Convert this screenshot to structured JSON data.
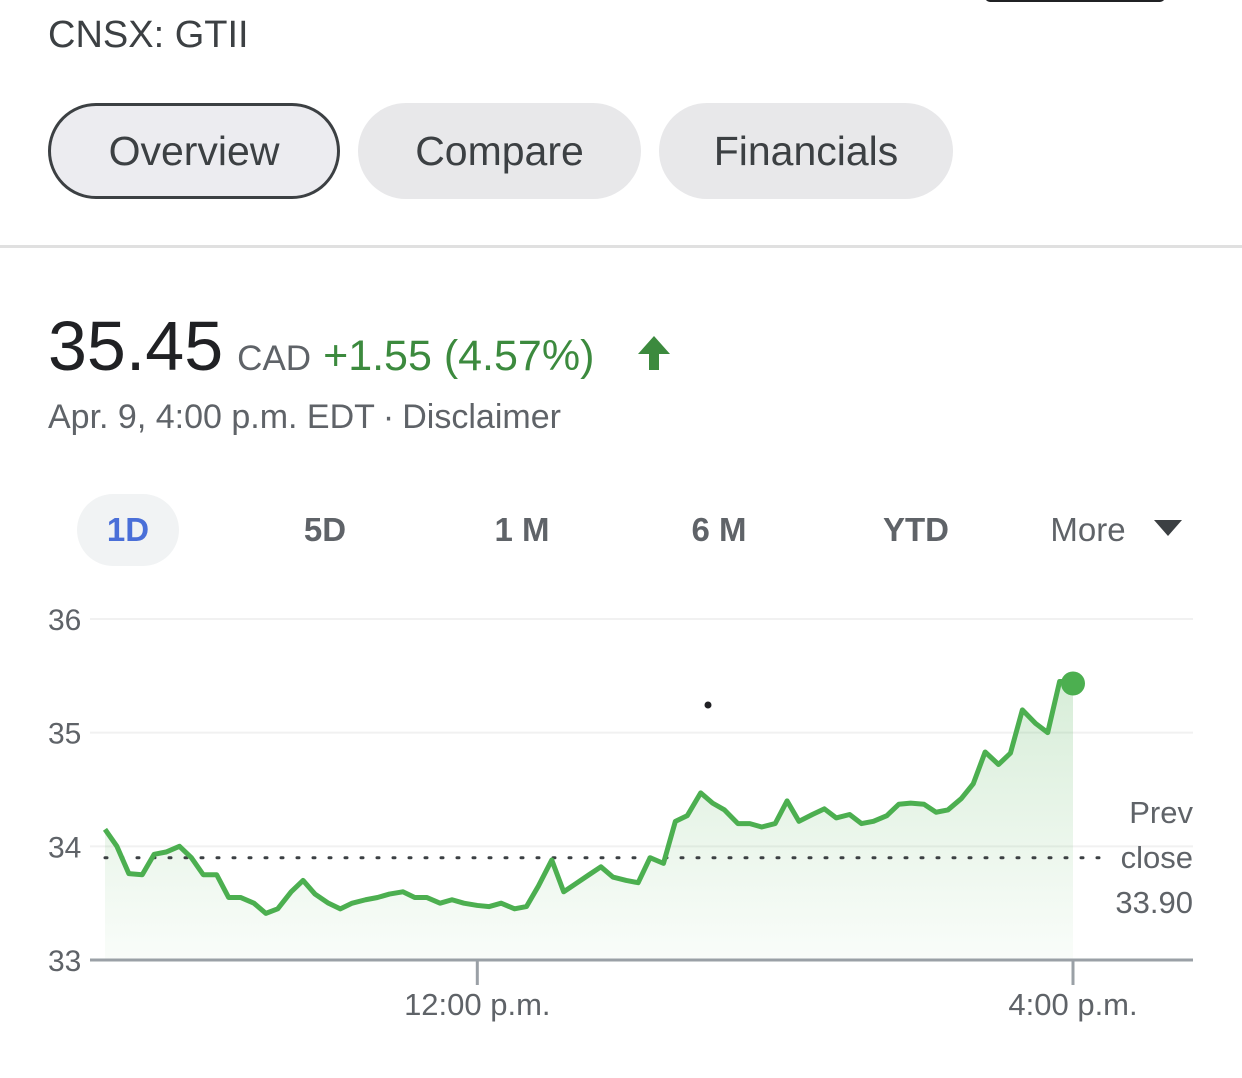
{
  "header": {
    "ticker": "CNSX: GTII"
  },
  "tabs": [
    {
      "label": "Overview",
      "active": true
    },
    {
      "label": "Compare",
      "active": false
    },
    {
      "label": "Financials",
      "active": false
    }
  ],
  "quote": {
    "price": "35.45",
    "currency": "CAD",
    "change": "+1.55 (4.57%)",
    "direction_icon": "arrow-up-icon",
    "timestamp": "Apr. 9, 4:00 p.m. EDT",
    "separator": "·",
    "disclaimer": "Disclaimer"
  },
  "ranges": [
    {
      "label": "1D",
      "active": true
    },
    {
      "label": "5D",
      "active": false
    },
    {
      "label": "1 M",
      "active": false
    },
    {
      "label": "6 M",
      "active": false
    },
    {
      "label": "YTD",
      "active": false
    },
    {
      "label": "More",
      "active": false
    }
  ],
  "colors": {
    "line": "#4caf50",
    "accent_active": "#4a6fd8",
    "positive": "#3c8a3e"
  },
  "chart_data": {
    "type": "area",
    "ylim": [
      33,
      36
    ],
    "yticks": [
      36,
      35,
      34,
      33
    ],
    "xlim": [
      9.5,
      16.5
    ],
    "xticks": [
      {
        "value": 12,
        "label": "12:00 p.m."
      },
      {
        "value": 16,
        "label": "4:00 p.m."
      }
    ],
    "grid": true,
    "prev_close": {
      "value": 33.9,
      "label_lines": [
        "Prev",
        "close",
        "33.90"
      ]
    },
    "last_point": {
      "x": 16.0,
      "y": 35.45
    },
    "series": [
      {
        "x": [
          9.5,
          9.58,
          9.66,
          9.75,
          9.83,
          9.91,
          10.0,
          10.08,
          10.16,
          10.25,
          10.33,
          10.41,
          10.5,
          10.58,
          10.66,
          10.75,
          10.83,
          10.91,
          11.0,
          11.08,
          11.16,
          11.25,
          11.33,
          11.41,
          11.5,
          11.58,
          11.66,
          11.75,
          11.83,
          11.91,
          12.0,
          12.08,
          12.16,
          12.25,
          12.33,
          12.41,
          12.5,
          12.58,
          12.66,
          12.75,
          12.83,
          12.91,
          13.0,
          13.08,
          13.16,
          13.25,
          13.33,
          13.41,
          13.5,
          13.58,
          13.66,
          13.75,
          13.83,
          13.91,
          14.0,
          14.08,
          14.16,
          14.25,
          14.33,
          14.41,
          14.5,
          14.58,
          14.66,
          14.75,
          14.83,
          14.91,
          15.0,
          15.08,
          15.16,
          15.25,
          15.33,
          15.41,
          15.5,
          15.58,
          15.66,
          15.75,
          15.83,
          15.91,
          16.0
        ],
        "values": [
          34.15,
          34.0,
          33.76,
          33.75,
          33.93,
          33.95,
          34.0,
          33.9,
          33.75,
          33.75,
          33.55,
          33.55,
          33.5,
          33.41,
          33.45,
          33.6,
          33.7,
          33.58,
          33.5,
          33.45,
          33.5,
          33.53,
          33.55,
          33.58,
          33.6,
          33.55,
          33.55,
          33.5,
          33.53,
          33.5,
          33.48,
          33.47,
          33.5,
          33.45,
          33.47,
          33.65,
          33.88,
          33.6,
          33.67,
          33.75,
          33.82,
          33.73,
          33.7,
          33.68,
          33.9,
          33.85,
          34.22,
          34.27,
          34.47,
          34.38,
          34.32,
          34.2,
          34.2,
          34.17,
          34.2,
          34.4,
          34.22,
          34.28,
          34.33,
          34.25,
          34.28,
          34.2,
          34.22,
          34.27,
          34.37,
          34.38,
          34.37,
          34.3,
          34.32,
          34.42,
          34.55,
          34.83,
          34.72,
          34.82,
          35.2,
          35.08,
          35.0,
          35.45,
          35.45
        ]
      }
    ]
  }
}
